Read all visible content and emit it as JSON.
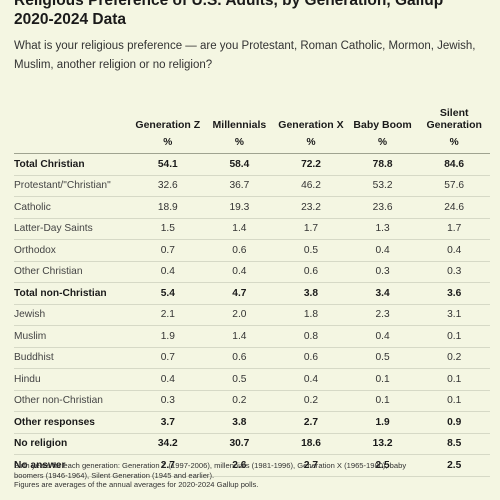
{
  "title_lines": [
    "Religious Preference of U.S. Adults, by Generation, Gallup",
    "2020-2024 Data"
  ],
  "question": "What is your religious preference — are you Protestant, Roman Catholic, Mormon, Jewish, Muslim, another religion or no religion?",
  "table": {
    "columns": [
      "Generation Z",
      "Millennials",
      "Generation X",
      "Baby Boom",
      "Silent Generation"
    ],
    "units": [
      "%",
      "%",
      "%",
      "%",
      "%"
    ],
    "rows": [
      {
        "label": "Total Christian",
        "bold": true,
        "values": [
          "54.1",
          "58.4",
          "72.2",
          "78.8",
          "84.6"
        ]
      },
      {
        "label": "Protestant/\"Christian\"",
        "bold": false,
        "values": [
          "32.6",
          "36.7",
          "46.2",
          "53.2",
          "57.6"
        ]
      },
      {
        "label": "Catholic",
        "bold": false,
        "values": [
          "18.9",
          "19.3",
          "23.2",
          "23.6",
          "24.6"
        ]
      },
      {
        "label": "Latter-Day Saints",
        "bold": false,
        "values": [
          "1.5",
          "1.4",
          "1.7",
          "1.3",
          "1.7"
        ]
      },
      {
        "label": "Orthodox",
        "bold": false,
        "values": [
          "0.7",
          "0.6",
          "0.5",
          "0.4",
          "0.4"
        ]
      },
      {
        "label": "Other Christian",
        "bold": false,
        "values": [
          "0.4",
          "0.4",
          "0.6",
          "0.3",
          "0.3"
        ]
      },
      {
        "label": "Total non-Christian",
        "bold": true,
        "values": [
          "5.4",
          "4.7",
          "3.8",
          "3.4",
          "3.6"
        ]
      },
      {
        "label": "Jewish",
        "bold": false,
        "values": [
          "2.1",
          "2.0",
          "1.8",
          "2.3",
          "3.1"
        ]
      },
      {
        "label": "Muslim",
        "bold": false,
        "values": [
          "1.9",
          "1.4",
          "0.8",
          "0.4",
          "0.1"
        ]
      },
      {
        "label": "Buddhist",
        "bold": false,
        "values": [
          "0.7",
          "0.6",
          "0.6",
          "0.5",
          "0.2"
        ]
      },
      {
        "label": "Hindu",
        "bold": false,
        "values": [
          "0.4",
          "0.5",
          "0.4",
          "0.1",
          "0.1"
        ]
      },
      {
        "label": "Other non-Christian",
        "bold": false,
        "values": [
          "0.3",
          "0.2",
          "0.2",
          "0.1",
          "0.1"
        ]
      },
      {
        "label": "Other responses",
        "bold": true,
        "values": [
          "3.7",
          "3.8",
          "2.7",
          "1.9",
          "0.9"
        ]
      },
      {
        "label": "No religion",
        "bold": true,
        "values": [
          "34.2",
          "30.7",
          "18.6",
          "13.2",
          "8.5"
        ]
      },
      {
        "label": "No answer",
        "bold": true,
        "values": [
          "2.7",
          "2.6",
          "2.7",
          "2.5",
          "2.5"
        ]
      }
    ]
  },
  "footnote_lines": [
    "Birth years for each generation: Generation Z (1997-2006), millennials (1981-1996), Generation X (1965-1980), baby",
    "boomers (1946-1964), Silent Generation (1945 and earlier).",
    "Figures are averages of the annual averages for 2020-2024 Gallup polls."
  ]
}
